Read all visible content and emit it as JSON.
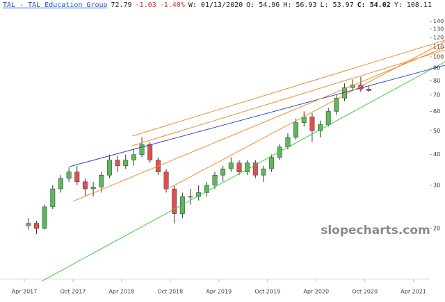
{
  "header": {
    "ticker": "TAL - TAL Education Group",
    "last": "72.79",
    "change": "-1.03",
    "change_pct": "-1.40%",
    "date": "W: 01/13/2020",
    "open": "O: 54.96",
    "high": "H: 56.93",
    "low": "L: 53.97",
    "close": "C: 54.02",
    "year": "Y: 108.11"
  },
  "chart_data": {
    "type": "candlestick",
    "watermark": "slopecharts.com",
    "log": true,
    "up_color": "#5cb85c",
    "down_color": "#e05050",
    "x": [
      "2017-04",
      "2017-05",
      "2017-06",
      "2017-07",
      "2017-08",
      "2017-09",
      "2017-10",
      "2017-11",
      "2017-12",
      "2018-01",
      "2018-02",
      "2018-03",
      "2018-04",
      "2018-05",
      "2018-06",
      "2018-07",
      "2018-08",
      "2018-09",
      "2018-10",
      "2018-11",
      "2018-12",
      "2019-01",
      "2019-02",
      "2019-03",
      "2019-04",
      "2019-05",
      "2019-06",
      "2019-07",
      "2019-08",
      "2019-09",
      "2019-10",
      "2019-11",
      "2019-12",
      "2020-01",
      "2020-02",
      "2020-03",
      "2020-04",
      "2020-05",
      "2020-06",
      "2020-07",
      "2020-08",
      "2020-09",
      "2020-10"
    ],
    "open": [
      20.5,
      21,
      20,
      24.5,
      29,
      32,
      34,
      31,
      29,
      29.5,
      33,
      38,
      36,
      38,
      40,
      44,
      38,
      34,
      29,
      23,
      27,
      27,
      28,
      30,
      33,
      35,
      37,
      34,
      37,
      33,
      35,
      39,
      43,
      47,
      54,
      57,
      50,
      53,
      60,
      68,
      75,
      77,
      74
    ],
    "high": [
      22,
      21.5,
      25,
      30,
      33,
      35.5,
      36,
      32,
      31,
      34,
      40,
      39.5,
      40,
      42,
      47,
      45,
      39,
      35,
      30,
      28,
      29,
      30,
      31,
      34,
      36,
      39,
      38,
      38,
      38,
      36,
      40,
      44,
      49,
      56,
      60,
      59,
      55,
      62,
      70,
      78,
      81,
      83,
      76
    ],
    "low": [
      19.8,
      19,
      19.8,
      24,
      28,
      31,
      30,
      27,
      27,
      28,
      32,
      34,
      35,
      36,
      39,
      37,
      33,
      28,
      21,
      22,
      25,
      26,
      27,
      29,
      31,
      34,
      33,
      33,
      32,
      31,
      34,
      38,
      42,
      46,
      52,
      45,
      47,
      52,
      58,
      66,
      73,
      72,
      72
    ],
    "close": [
      21,
      20,
      24.5,
      29,
      32,
      34,
      31,
      29,
      29.5,
      33,
      38,
      36,
      38,
      40,
      44,
      38,
      34,
      29,
      23,
      27,
      27,
      28,
      30,
      33,
      35,
      37,
      34,
      37,
      33,
      35,
      39,
      43,
      47,
      54,
      57,
      50,
      53,
      60,
      68,
      75,
      77,
      74,
      73
    ],
    "xlim": [
      "2017-01",
      "2021-06"
    ],
    "xticks": [
      {
        "value": "2017-04",
        "label": "Apr 2017"
      },
      {
        "value": "2017-10",
        "label": "Oct 2017"
      },
      {
        "value": "2018-04",
        "label": "Apr 2018"
      },
      {
        "value": "2018-10",
        "label": "Oct 2018"
      },
      {
        "value": "2019-04",
        "label": "Apr 2019"
      },
      {
        "value": "2019-10",
        "label": "Oct 2019"
      },
      {
        "value": "2020-04",
        "label": "Apr 2020"
      },
      {
        "value": "2020-10",
        "label": "Oct 2020"
      },
      {
        "value": "2021-04",
        "label": "Apr 2021"
      }
    ],
    "ylim": [
      12.6,
      149.8
    ],
    "yticks": [
      20,
      30,
      40,
      50,
      60,
      70,
      80,
      90,
      100,
      110,
      120,
      130,
      140
    ]
  }
}
